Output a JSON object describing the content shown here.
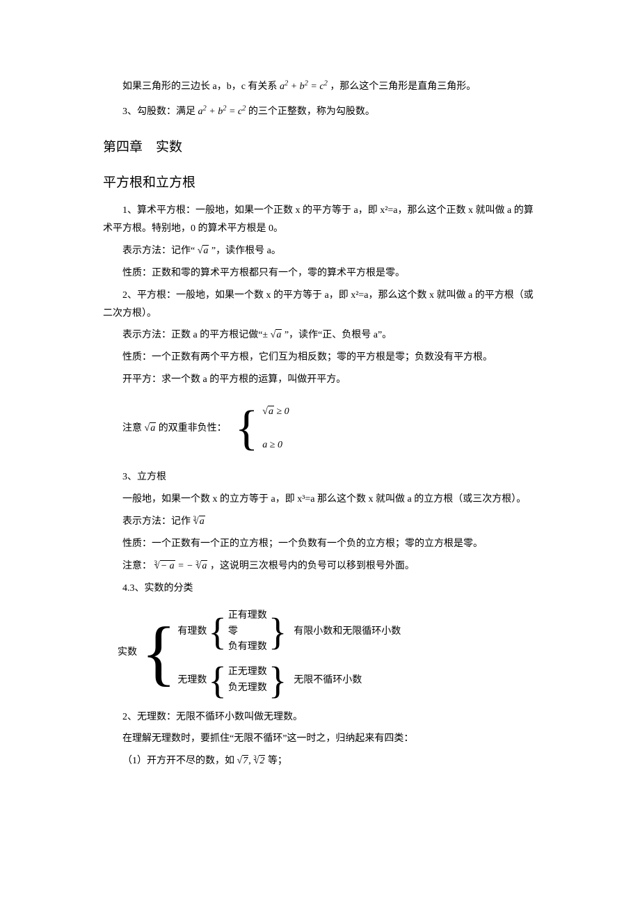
{
  "line1_a": "如果三角形的三边长 a，b，c 有关系",
  "pythag_eq": "a² + b² = c²",
  "line1_b": "，那么这个三角形是直角三角形。",
  "line2_a": "3、勾股数：满足",
  "line2_b": "的三个正整数，称为勾股数。",
  "chapter": "第四章　实数",
  "section1": "平方根和立方根",
  "s1_p1": "1、算术平方根：一般地，如果一个正数 x 的平方等于 a，即 x²=a，那么这个正数 x 就叫做 a 的算术平方根。特别地，0 的算术平方根是 0。",
  "s1_p2_a": "表示方法：记作“",
  "sqrt_a": "a",
  "s1_p2_b": "”，读作根号 a。",
  "s1_p3": "性质：正数和零的算术平方根都只有一个，零的算术平方根是零。",
  "s1_p4": "2、平方根：一般地，如果一个数 x 的平方等于 a，即 x²=a，那么这个数 x 就叫做 a 的平方根（或二次方根）。",
  "s1_p5_a": "表示方法：正数 a 的平方根记做“±",
  "s1_p5_b": "”，读作“正、负根号 a”。",
  "s1_p6": "性质：一个正数有两个平方根，它们互为相反数；零的平方根是零；负数没有平方根。",
  "s1_p7": "开平方：求一个数 a 的平方根的运算，叫做开平方。",
  "note_label_a": "注意",
  "note_label_b": "的双重非负性：",
  "note_top": " ≥ 0",
  "note_bot": "a ≥ 0",
  "s1_p8": "3、立方根",
  "s1_p9": "一般地，如果一个数 x 的立方等于 a，即 x³=a 那么这个数 x 就叫做 a 的立方根（或三次方根）。",
  "s1_p10_a": "表示方法：记作",
  "cube_a": "a",
  "s1_p11": "性质：一个正数有一个正的立方根；一个负数有一个负的立方根；零的立方根是零。",
  "s1_p12_a": "注意：",
  "s1_p12_mid": " = −",
  "s1_p12_b": "，这说明三次根号内的负号可以移到根号外面。",
  "s1_p13": "4.3、实数的分类",
  "tree_root": "实数",
  "tree_b1": "有理数",
  "tree_b2": "无理数",
  "tree_b1_i1": "正有理数",
  "tree_b1_i2": "零",
  "tree_b1_i3": "负有理数",
  "tree_b2_i1": "正无理数",
  "tree_b2_i2": "负无理数",
  "tree_b1_desc": "有限小数和无限循环小数",
  "tree_b2_desc": "无限不循环小数",
  "s1_p14": "2、无理数：无限不循环小数叫做无理数。",
  "s1_p15": "在理解无理数时，要抓住“无限不循环”这一时之，归纳起来有四类：",
  "s1_p16_a": "（1）开方开不尽的数，如",
  "ex_sqrt7": "7",
  "ex_sep": ", ",
  "ex_cbrt2": "2",
  "s1_p16_b": " 等；"
}
